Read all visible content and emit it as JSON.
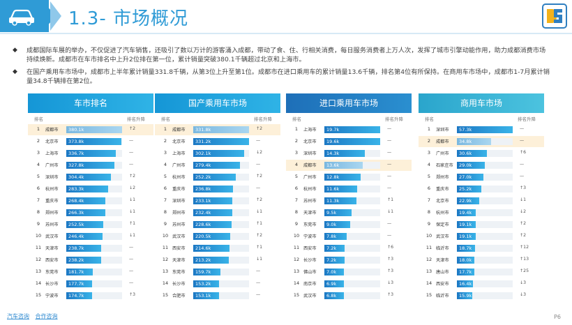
{
  "header": {
    "title": "1.3- 市场概况",
    "icon": "car-icon",
    "logo": "DS-logo",
    "accent": "#2f9bd6"
  },
  "paragraphs": [
    "成都国际车展的举办，不仅促进了汽车销售，还吸引了数以万计的游客涌入成都，带动了食、住、行相关消费，每日服务消费者上万人次，发挥了城市引擎动能作用，助力成都消费市场持续焕新。成都市在车市排名中上升2位排在第一位，累计销量突破380.1千辆超过北京和上海市。",
    "在国产乘用车市场中，成都市上半年累计销量331.8千辆，从第3位上升至第1位。成都市在进口乘用车的累计销量13.6千辆，排名第4位有所保持。在商用车市场中，成都市1-7月累计销量34.8千辆排在第2位。"
  ],
  "col_labels": {
    "rank": "排名",
    "change": "排名升降"
  },
  "panels": [
    {
      "title": "车市排名",
      "style": "light",
      "rows": [
        {
          "rank": "1",
          "city": "成都市",
          "value": "380.1k",
          "v": 380.1,
          "change": "↑2",
          "hl": true
        },
        {
          "rank": "2",
          "city": "北京市",
          "value": "373.8k",
          "v": 373.8,
          "change": "—"
        },
        {
          "rank": "3",
          "city": "上海市",
          "value": "336.7k",
          "v": 336.7,
          "change": "—"
        },
        {
          "rank": "4",
          "city": "广州市",
          "value": "327.8k",
          "v": 327.8,
          "change": "—"
        },
        {
          "rank": "5",
          "city": "深圳市",
          "value": "304.4k",
          "v": 304.4,
          "change": "↑2"
        },
        {
          "rank": "6",
          "city": "杭州市",
          "value": "283.3k",
          "v": 283.3,
          "change": "↓2"
        },
        {
          "rank": "7",
          "city": "重庆市",
          "value": "268.4k",
          "v": 268.4,
          "change": "↓1"
        },
        {
          "rank": "8",
          "city": "郑州市",
          "value": "266.3k",
          "v": 266.3,
          "change": "↓1"
        },
        {
          "rank": "9",
          "city": "苏州市",
          "value": "252.5k",
          "v": 252.5,
          "change": "↑1"
        },
        {
          "rank": "10",
          "city": "武汉市",
          "value": "246.4k",
          "v": 246.4,
          "change": "↓1"
        },
        {
          "rank": "11",
          "city": "天津市",
          "value": "238.7k",
          "v": 238.7,
          "change": "—"
        },
        {
          "rank": "12",
          "city": "西安市",
          "value": "238.2k",
          "v": 238.2,
          "change": "—"
        },
        {
          "rank": "13",
          "city": "东莞市",
          "value": "181.7k",
          "v": 181.7,
          "change": "—"
        },
        {
          "rank": "14",
          "city": "长沙市",
          "value": "177.7k",
          "v": 177.7,
          "change": "—"
        },
        {
          "rank": "15",
          "city": "宁波市",
          "value": "174.7k",
          "v": 174.7,
          "change": "↑3"
        }
      ]
    },
    {
      "title": "国产乘用车市场",
      "style": "light",
      "rows": [
        {
          "rank": "1",
          "city": "成都市",
          "value": "331.8k",
          "v": 331.8,
          "change": "↑2",
          "hl": true
        },
        {
          "rank": "2",
          "city": "北京市",
          "value": "331.2k",
          "v": 331.2,
          "change": "—"
        },
        {
          "rank": "3",
          "city": "上海市",
          "value": "302.1k",
          "v": 302.1,
          "change": "↓2"
        },
        {
          "rank": "4",
          "city": "广州市",
          "value": "279.4k",
          "v": 279.4,
          "change": "—"
        },
        {
          "rank": "5",
          "city": "杭州市",
          "value": "252.2k",
          "v": 252.2,
          "change": "↑2"
        },
        {
          "rank": "6",
          "city": "重庆市",
          "value": "236.8k",
          "v": 236.8,
          "change": "—"
        },
        {
          "rank": "7",
          "city": "深圳市",
          "value": "233.1k",
          "v": 233.1,
          "change": "↑2"
        },
        {
          "rank": "8",
          "city": "郑州市",
          "value": "232.4k",
          "v": 232.4,
          "change": "↓1"
        },
        {
          "rank": "9",
          "city": "苏州市",
          "value": "228.6k",
          "v": 228.6,
          "change": "↑1"
        },
        {
          "rank": "10",
          "city": "武汉市",
          "value": "220.5k",
          "v": 220.5,
          "change": "↑2"
        },
        {
          "rank": "11",
          "city": "西安市",
          "value": "214.6k",
          "v": 214.6,
          "change": "↑1"
        },
        {
          "rank": "12",
          "city": "天津市",
          "value": "213.2k",
          "v": 213.2,
          "change": "↓1"
        },
        {
          "rank": "13",
          "city": "东莞市",
          "value": "159.7k",
          "v": 159.7,
          "change": "—"
        },
        {
          "rank": "14",
          "city": "长沙市",
          "value": "153.2k",
          "v": 153.2,
          "change": "—"
        },
        {
          "rank": "15",
          "city": "合肥市",
          "value": "153.1k",
          "v": 153.1,
          "change": "—"
        }
      ]
    },
    {
      "title": "进口乘用车市场",
      "style": "dark",
      "rows": [
        {
          "rank": "1",
          "city": "上海市",
          "value": "19.7k",
          "v": 19.7,
          "change": "—"
        },
        {
          "rank": "2",
          "city": "北京市",
          "value": "19.6k",
          "v": 19.6,
          "change": "—"
        },
        {
          "rank": "3",
          "city": "深圳市",
          "value": "14.3k",
          "v": 14.3,
          "change": "—"
        },
        {
          "rank": "4",
          "city": "成都市",
          "value": "13.6k",
          "v": 13.6,
          "change": "—",
          "hl": true
        },
        {
          "rank": "5",
          "city": "广州市",
          "value": "12.8k",
          "v": 12.8,
          "change": "—"
        },
        {
          "rank": "6",
          "city": "杭州市",
          "value": "11.6k",
          "v": 11.6,
          "change": "—"
        },
        {
          "rank": "7",
          "city": "苏州市",
          "value": "11.3k",
          "v": 11.3,
          "change": "↑1"
        },
        {
          "rank": "8",
          "city": "天津市",
          "value": "9.5k",
          "v": 9.5,
          "change": "↓1"
        },
        {
          "rank": "9",
          "city": "东莞市",
          "value": "9.0k",
          "v": 9.0,
          "change": "—"
        },
        {
          "rank": "10",
          "city": "宁波市",
          "value": "7.8k",
          "v": 7.8,
          "change": "—"
        },
        {
          "rank": "11",
          "city": "西安市",
          "value": "7.2k",
          "v": 7.2,
          "change": "↑6"
        },
        {
          "rank": "12",
          "city": "长沙市",
          "value": "7.2k",
          "v": 7.2,
          "change": "↑3"
        },
        {
          "rank": "13",
          "city": "佛山市",
          "value": "7.0k",
          "v": 7.0,
          "change": "↑3"
        },
        {
          "rank": "14",
          "city": "南京市",
          "value": "6.9k",
          "v": 6.9,
          "change": "↓3"
        },
        {
          "rank": "15",
          "city": "武汉市",
          "value": "6.8k",
          "v": 6.8,
          "change": "↑3"
        }
      ]
    },
    {
      "title": "商用车市场",
      "style": "teal",
      "rows": [
        {
          "rank": "1",
          "city": "深圳市",
          "value": "57.3k",
          "v": 57.3,
          "change": "—"
        },
        {
          "rank": "2",
          "city": "成都市",
          "value": "34.8k",
          "v": 34.8,
          "change": "—",
          "hl": true
        },
        {
          "rank": "3",
          "city": "广州市",
          "value": "30.6k",
          "v": 30.6,
          "change": "↑6"
        },
        {
          "rank": "4",
          "city": "石家庄市",
          "value": "29.0k",
          "v": 29.0,
          "change": "—"
        },
        {
          "rank": "5",
          "city": "郑州市",
          "value": "27.0k",
          "v": 27.0,
          "change": "—"
        },
        {
          "rank": "6",
          "city": "重庆市",
          "value": "25.2k",
          "v": 25.2,
          "change": "↑3"
        },
        {
          "rank": "7",
          "city": "北京市",
          "value": "22.9k",
          "v": 22.9,
          "change": "↓1"
        },
        {
          "rank": "8",
          "city": "杭州市",
          "value": "19.4k",
          "v": 19.4,
          "change": "↓2"
        },
        {
          "rank": "9",
          "city": "保定市",
          "value": "19.1k",
          "v": 19.1,
          "change": "↑2"
        },
        {
          "rank": "10",
          "city": "武汉市",
          "value": "19.1k",
          "v": 19.1,
          "change": "↑2"
        },
        {
          "rank": "11",
          "city": "临沂市",
          "value": "18.7k",
          "v": 18.7,
          "change": "↑12"
        },
        {
          "rank": "12",
          "city": "天津市",
          "value": "18.0k",
          "v": 18.0,
          "change": "↑13"
        },
        {
          "rank": "13",
          "city": "唐山市",
          "value": "17.7k",
          "v": 17.7,
          "change": "↑25"
        },
        {
          "rank": "14",
          "city": "西安市",
          "value": "16.4k",
          "v": 16.4,
          "change": "↓3"
        },
        {
          "rank": "15",
          "city": "临沂市",
          "value": "15.9k",
          "v": 15.9,
          "change": "↓3"
        }
      ]
    }
  ],
  "footer": {
    "links": [
      "汽车咨询",
      "合作咨询"
    ],
    "page": "P6"
  }
}
